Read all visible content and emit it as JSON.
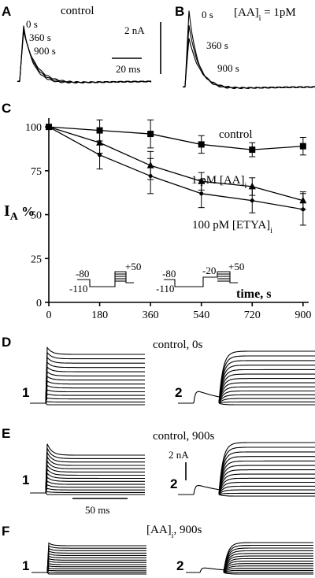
{
  "panels": {
    "A": {
      "letter": "A",
      "title": "control",
      "times": [
        "0 s",
        "360 s",
        "900 s"
      ]
    },
    "B": {
      "letter": "B",
      "title_main": "[AA]",
      "title_sub": "i",
      "title_rest": " = 1pM",
      "times": [
        "0 s",
        "360 s",
        "900 s"
      ]
    },
    "C": {
      "letter": "C"
    },
    "D": {
      "letter": "D",
      "title": "control, 0s",
      "left_num": "1",
      "right_num": "2"
    },
    "E": {
      "letter": "E",
      "title": "control, 900s",
      "left_num": "1",
      "right_num": "2"
    },
    "F": {
      "letter": "F",
      "title_main": "[AA]",
      "title_sub": "i",
      "title_rest": ", 900s",
      "left_num": "1",
      "right_num": "2"
    }
  },
  "scale_bars": {
    "ab_current": "2 nA",
    "ab_time": "20 ms",
    "e_current": "2 nA",
    "e_time": "50 ms"
  },
  "protocols": {
    "p1": {
      "hold": "-80",
      "pre": "-110",
      "top": "+50"
    },
    "p2": {
      "hold": "-80",
      "pre": "-110",
      "mid": "-20",
      "top": "+50"
    }
  },
  "chart_data": {
    "type": "line",
    "xlabel": "time, s",
    "ylabel_main": "I",
    "ylabel_sub": "A",
    "ylabel_rest": " %",
    "xlim": [
      0,
      920
    ],
    "ylim": [
      0,
      105
    ],
    "x_ticks": [
      0,
      180,
      360,
      540,
      720,
      900
    ],
    "y_ticks": [
      0,
      25,
      50,
      75,
      100
    ],
    "series": [
      {
        "name": "control",
        "marker": "square",
        "x": [
          0,
          180,
          360,
          540,
          720,
          900
        ],
        "y": [
          100,
          98,
          96,
          90,
          87,
          89
        ],
        "err": [
          0,
          6,
          8,
          5,
          4,
          5
        ]
      },
      {
        "name_main": "1 pM [AA]",
        "name_sub": "i",
        "marker": "triangle",
        "x": [
          0,
          180,
          360,
          540,
          720,
          900
        ],
        "y": [
          100,
          91,
          78,
          69,
          66,
          58
        ],
        "err": [
          0,
          6,
          8,
          5,
          5,
          5
        ]
      },
      {
        "name_main": "100 pM [ETYA]",
        "name_sub": "i",
        "marker": "circle",
        "x": [
          0,
          180,
          360,
          540,
          720,
          900
        ],
        "y": [
          100,
          84,
          72,
          62,
          58,
          53
        ],
        "err": [
          0,
          8,
          10,
          8,
          7,
          9
        ]
      }
    ]
  }
}
